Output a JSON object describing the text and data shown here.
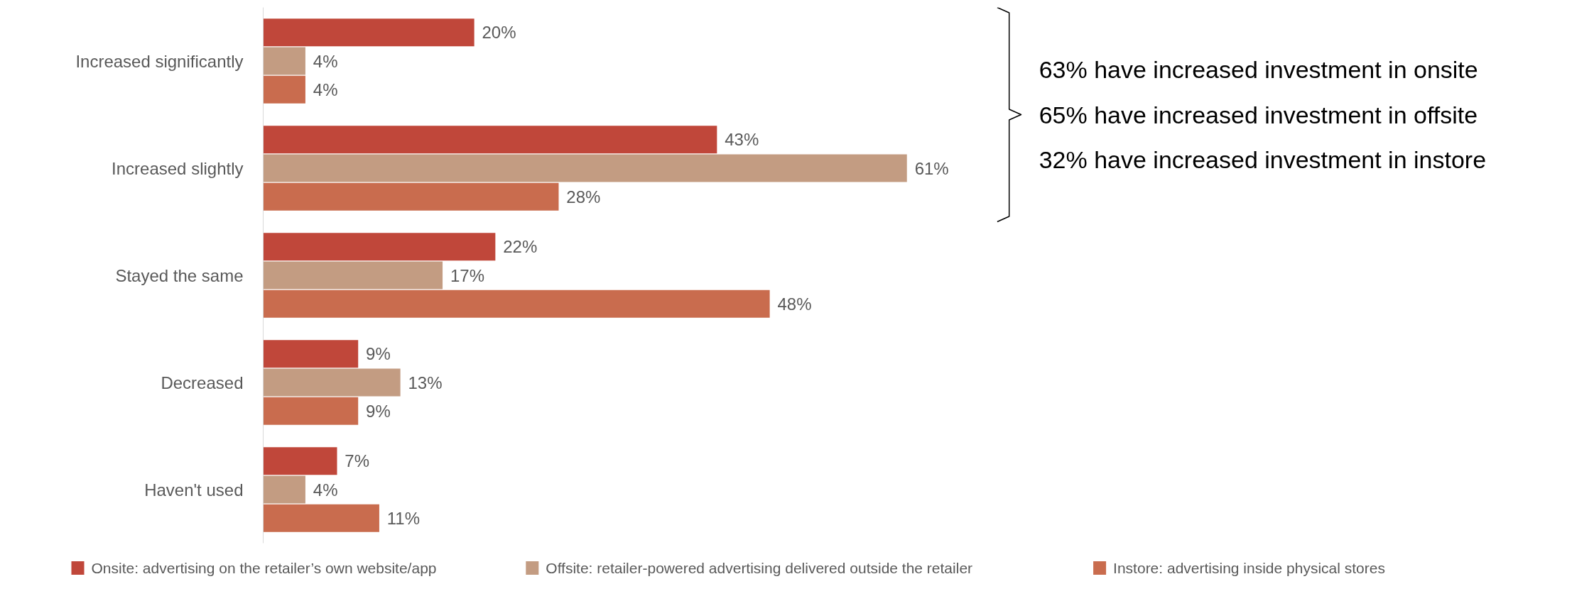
{
  "chart_data": {
    "type": "bar",
    "orientation": "horizontal",
    "categories": [
      "Increased significantly",
      "Increased slightly",
      "Stayed the same",
      "Decreased",
      "Haven't used"
    ],
    "series": [
      {
        "name": "Onsite: advertising on the retailer’s own website/app",
        "color": "#c0473a",
        "values": [
          20,
          43,
          22,
          9,
          7
        ],
        "value_labels": [
          "20%",
          "43%",
          "22%",
          "9%",
          "7%"
        ]
      },
      {
        "name": "Offsite: retailer-powered advertising delivered outside the retailer",
        "color": "#c39c82",
        "values": [
          4,
          61,
          17,
          13,
          4
        ],
        "value_labels": [
          "4%",
          "61%",
          "17%",
          "13%",
          "4%"
        ]
      },
      {
        "name": "Instore: advertising inside physical stores",
        "color": "#c96c4e",
        "values": [
          4,
          28,
          48,
          9,
          11
        ],
        "value_labels": [
          "4%",
          "28%",
          "48%",
          "9%",
          "11%"
        ]
      }
    ],
    "annotations": [
      "63% have increased investment in onsite",
      "65% have increased investment in offsite",
      "32% have increased investment in instore"
    ],
    "legend": "bottom",
    "grid": false,
    "tick_labels": "y"
  }
}
